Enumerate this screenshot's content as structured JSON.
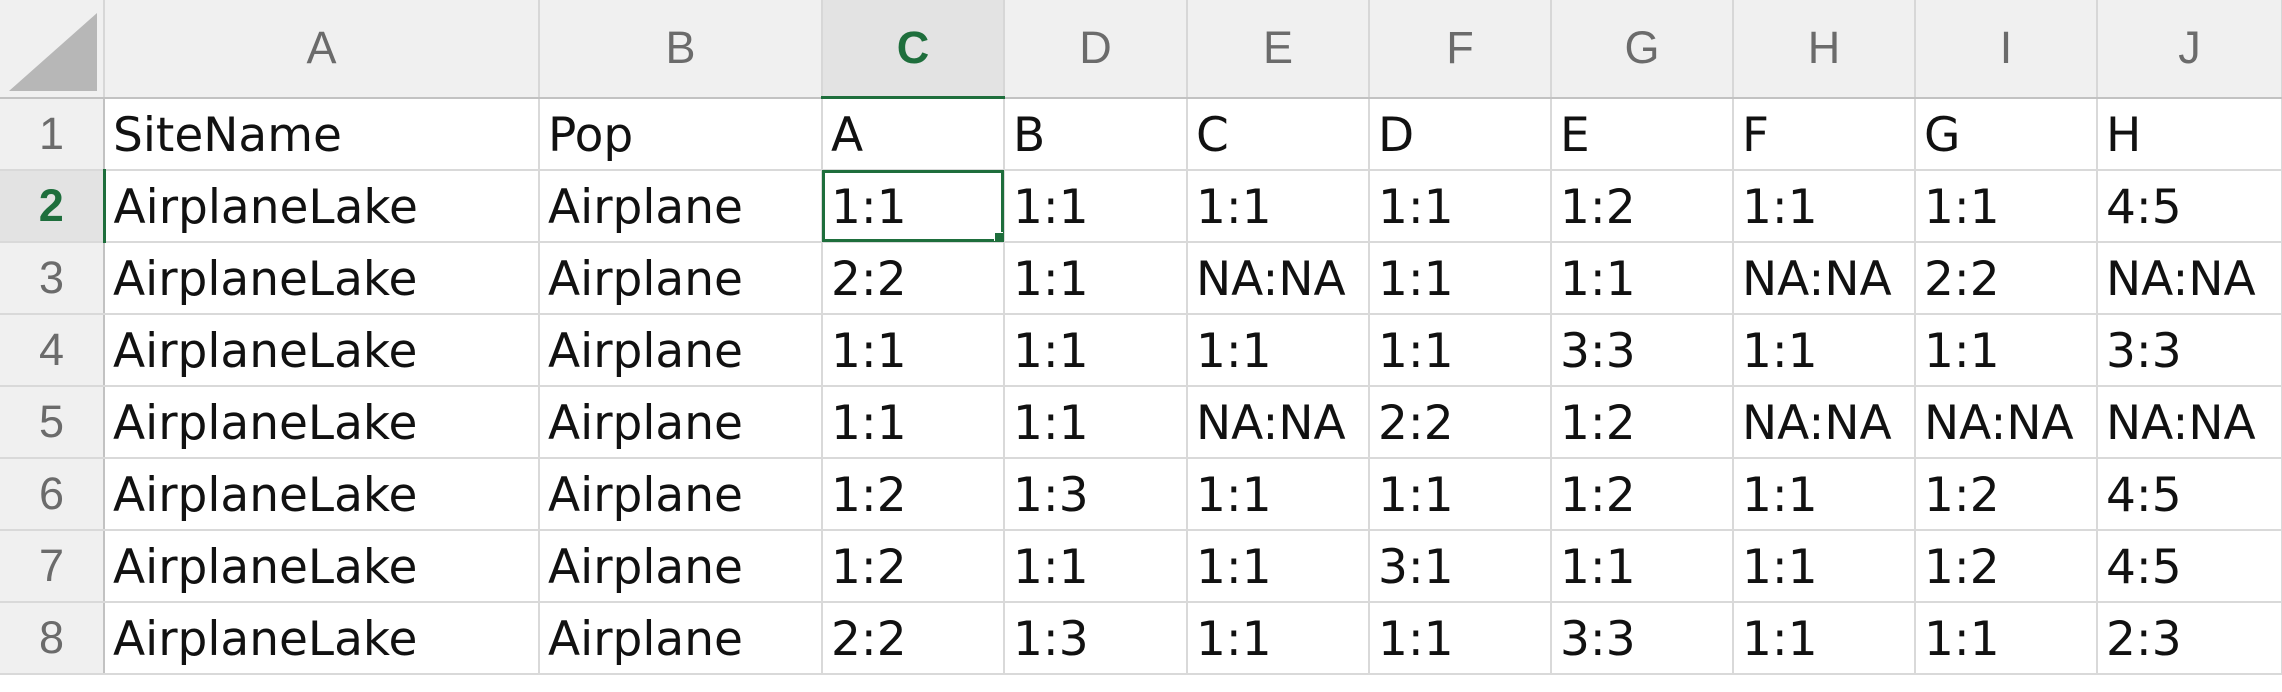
{
  "columns": [
    "A",
    "B",
    "C",
    "D",
    "E",
    "F",
    "G",
    "H",
    "I",
    "J"
  ],
  "active_column": "C",
  "active_row": "2",
  "rows": [
    {
      "num": "1",
      "cells": [
        "SiteName",
        "Pop",
        "A",
        "B",
        "C",
        "D",
        "E",
        "F",
        "G",
        "H"
      ]
    },
    {
      "num": "2",
      "cells": [
        "AirplaneLake",
        "Airplane",
        "1:1",
        "1:1",
        "1:1",
        "1:1",
        "1:2",
        "1:1",
        "1:1",
        "4:5"
      ]
    },
    {
      "num": "3",
      "cells": [
        "AirplaneLake",
        "Airplane",
        "2:2",
        "1:1",
        "NA:NA",
        "1:1",
        "1:1",
        "NA:NA",
        "2:2",
        "NA:NA"
      ]
    },
    {
      "num": "4",
      "cells": [
        "AirplaneLake",
        "Airplane",
        "1:1",
        "1:1",
        "1:1",
        "1:1",
        "3:3",
        "1:1",
        "1:1",
        "3:3"
      ]
    },
    {
      "num": "5",
      "cells": [
        "AirplaneLake",
        "Airplane",
        "1:1",
        "1:1",
        "NA:NA",
        "2:2",
        "1:2",
        "NA:NA",
        "NA:NA",
        "NA:NA"
      ]
    },
    {
      "num": "6",
      "cells": [
        "AirplaneLake",
        "Airplane",
        "1:2",
        "1:3",
        "1:1",
        "1:1",
        "1:2",
        "1:1",
        "1:2",
        "4:5"
      ]
    },
    {
      "num": "7",
      "cells": [
        "AirplaneLake",
        "Airplane",
        "1:2",
        "1:1",
        "1:1",
        "3:1",
        "1:1",
        "1:1",
        "1:2",
        "4:5"
      ]
    },
    {
      "num": "8",
      "cells": [
        "AirplaneLake",
        "Airplane",
        "2:2",
        "1:3",
        "1:1",
        "1:1",
        "3:3",
        "1:1",
        "1:1",
        "2:3"
      ]
    }
  ]
}
